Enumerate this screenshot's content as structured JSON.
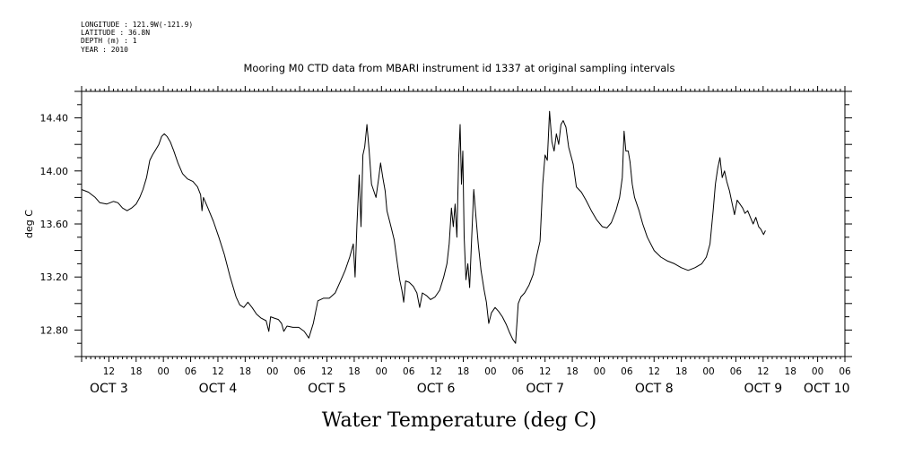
{
  "header": {
    "meta_lines": [
      "LONGITUDE : 121.9W(-121.9)",
      "LATITUDE : 36.8N",
      "DEPTH (m) : 1",
      "YEAR : 2010"
    ]
  },
  "chart_data": {
    "type": "line",
    "title": "Mooring M0 CTD data from MBARI instrument id 1337 at original sampling intervals",
    "xlabel": "Water Temperature (deg C)",
    "ylabel": "deg C",
    "ylim": [
      12.6,
      14.6
    ],
    "y_ticks": [
      12.8,
      13.2,
      13.6,
      14.0,
      14.4
    ],
    "y_tick_labels": [
      "12.80",
      "13.20",
      "13.60",
      "14.00",
      "14.40"
    ],
    "x_unit": "hours since Oct 3 2010 00:00",
    "xlim": [
      6,
      174
    ],
    "hour_ticks": [
      {
        "h": 12,
        "label": "12"
      },
      {
        "h": 18,
        "label": "18"
      },
      {
        "h": 24,
        "label": "00"
      },
      {
        "h": 30,
        "label": "06"
      },
      {
        "h": 36,
        "label": "12"
      },
      {
        "h": 42,
        "label": "18"
      },
      {
        "h": 48,
        "label": "00"
      },
      {
        "h": 54,
        "label": "06"
      },
      {
        "h": 60,
        "label": "12"
      },
      {
        "h": 66,
        "label": "18"
      },
      {
        "h": 72,
        "label": "00"
      },
      {
        "h": 78,
        "label": "06"
      },
      {
        "h": 84,
        "label": "12"
      },
      {
        "h": 90,
        "label": "18"
      },
      {
        "h": 96,
        "label": "00"
      },
      {
        "h": 102,
        "label": "06"
      },
      {
        "h": 108,
        "label": "12"
      },
      {
        "h": 114,
        "label": "18"
      },
      {
        "h": 120,
        "label": "00"
      },
      {
        "h": 126,
        "label": "06"
      },
      {
        "h": 132,
        "label": "12"
      },
      {
        "h": 138,
        "label": "18"
      },
      {
        "h": 144,
        "label": "00"
      },
      {
        "h": 150,
        "label": "06"
      },
      {
        "h": 156,
        "label": "12"
      },
      {
        "h": 162,
        "label": "18"
      },
      {
        "h": 168,
        "label": "00"
      },
      {
        "h": 174,
        "label": "06"
      }
    ],
    "day_labels": [
      {
        "h": 12,
        "label": "OCT  3"
      },
      {
        "h": 36,
        "label": "OCT  4"
      },
      {
        "h": 60,
        "label": "OCT  5"
      },
      {
        "h": 84,
        "label": "OCT  6"
      },
      {
        "h": 108,
        "label": "OCT  7"
      },
      {
        "h": 132,
        "label": "OCT  8"
      },
      {
        "h": 156,
        "label": "OCT  9"
      },
      {
        "h": 170,
        "label": "OCT 10"
      }
    ],
    "grid": false,
    "series": [
      {
        "color": "#000000",
        "points": [
          [
            6.0,
            13.86
          ],
          [
            7.5,
            13.84
          ],
          [
            9.0,
            13.8
          ],
          [
            10.0,
            13.76
          ],
          [
            11.5,
            13.75
          ],
          [
            13.0,
            13.77
          ],
          [
            14.0,
            13.76
          ],
          [
            15.0,
            13.72
          ],
          [
            16.0,
            13.7
          ],
          [
            17.0,
            13.72
          ],
          [
            18.0,
            13.75
          ],
          [
            18.8,
            13.8
          ],
          [
            19.5,
            13.86
          ],
          [
            20.3,
            13.95
          ],
          [
            21.0,
            14.08
          ],
          [
            21.6,
            14.12
          ],
          [
            22.3,
            14.16
          ],
          [
            23.0,
            14.2
          ],
          [
            23.6,
            14.26
          ],
          [
            24.2,
            14.28
          ],
          [
            24.8,
            14.26
          ],
          [
            25.5,
            14.22
          ],
          [
            26.3,
            14.15
          ],
          [
            27.2,
            14.06
          ],
          [
            28.2,
            13.98
          ],
          [
            29.3,
            13.94
          ],
          [
            30.5,
            13.92
          ],
          [
            31.5,
            13.88
          ],
          [
            32.2,
            13.82
          ],
          [
            32.5,
            13.7
          ],
          [
            32.8,
            13.8
          ],
          [
            33.8,
            13.72
          ],
          [
            35.0,
            13.62
          ],
          [
            36.2,
            13.5
          ],
          [
            37.4,
            13.37
          ],
          [
            38.7,
            13.2
          ],
          [
            40.0,
            13.05
          ],
          [
            40.8,
            12.99
          ],
          [
            41.7,
            12.97
          ],
          [
            42.6,
            13.01
          ],
          [
            43.5,
            12.97
          ],
          [
            44.5,
            12.92
          ],
          [
            45.5,
            12.89
          ],
          [
            46.6,
            12.87
          ],
          [
            47.2,
            12.79
          ],
          [
            47.6,
            12.9
          ],
          [
            48.4,
            12.89
          ],
          [
            49.3,
            12.88
          ],
          [
            50.0,
            12.85
          ],
          [
            50.5,
            12.79
          ],
          [
            51.2,
            12.83
          ],
          [
            52.5,
            12.82
          ],
          [
            53.8,
            12.82
          ],
          [
            55.0,
            12.79
          ],
          [
            56.0,
            12.74
          ],
          [
            57.0,
            12.85
          ],
          [
            58.0,
            13.02
          ],
          [
            59.2,
            13.04
          ],
          [
            60.5,
            13.04
          ],
          [
            61.8,
            13.08
          ],
          [
            63.0,
            13.17
          ],
          [
            64.0,
            13.25
          ],
          [
            65.0,
            13.35
          ],
          [
            65.8,
            13.45
          ],
          [
            66.2,
            13.2
          ],
          [
            66.6,
            13.6
          ],
          [
            67.1,
            13.97
          ],
          [
            67.5,
            13.58
          ],
          [
            67.9,
            14.12
          ],
          [
            68.3,
            14.18
          ],
          [
            68.8,
            14.35
          ],
          [
            69.3,
            14.15
          ],
          [
            69.8,
            13.9
          ],
          [
            70.3,
            13.85
          ],
          [
            70.8,
            13.8
          ],
          [
            71.4,
            13.95
          ],
          [
            71.8,
            14.06
          ],
          [
            72.3,
            13.95
          ],
          [
            72.8,
            13.85
          ],
          [
            73.2,
            13.7
          ],
          [
            73.8,
            13.62
          ],
          [
            74.3,
            13.55
          ],
          [
            74.8,
            13.48
          ],
          [
            75.5,
            13.3
          ],
          [
            76.0,
            13.18
          ],
          [
            76.5,
            13.1
          ],
          [
            76.9,
            13.01
          ],
          [
            77.3,
            13.17
          ],
          [
            78.1,
            13.16
          ],
          [
            79.0,
            13.13
          ],
          [
            79.8,
            13.08
          ],
          [
            80.4,
            12.97
          ],
          [
            81.0,
            13.08
          ],
          [
            81.9,
            13.06
          ],
          [
            82.8,
            13.03
          ],
          [
            83.8,
            13.05
          ],
          [
            84.8,
            13.1
          ],
          [
            85.7,
            13.2
          ],
          [
            86.4,
            13.3
          ],
          [
            86.9,
            13.45
          ],
          [
            87.4,
            13.72
          ],
          [
            87.8,
            13.58
          ],
          [
            88.2,
            13.75
          ],
          [
            88.6,
            13.5
          ],
          [
            89.0,
            14.1
          ],
          [
            89.3,
            14.35
          ],
          [
            89.6,
            13.9
          ],
          [
            89.9,
            14.15
          ],
          [
            90.2,
            13.5
          ],
          [
            90.6,
            13.18
          ],
          [
            91.0,
            13.3
          ],
          [
            91.4,
            13.12
          ],
          [
            91.8,
            13.45
          ],
          [
            92.3,
            13.86
          ],
          [
            92.8,
            13.65
          ],
          [
            93.3,
            13.45
          ],
          [
            93.9,
            13.25
          ],
          [
            94.6,
            13.1
          ],
          [
            95.1,
            13.01
          ],
          [
            95.6,
            12.85
          ],
          [
            96.2,
            12.93
          ],
          [
            97.0,
            12.97
          ],
          [
            97.8,
            12.94
          ],
          [
            98.6,
            12.9
          ],
          [
            99.5,
            12.84
          ],
          [
            100.2,
            12.78
          ],
          [
            100.9,
            12.73
          ],
          [
            101.5,
            12.7
          ],
          [
            102.1,
            13.0
          ],
          [
            102.7,
            13.05
          ],
          [
            103.5,
            13.08
          ],
          [
            104.5,
            13.14
          ],
          [
            105.4,
            13.22
          ],
          [
            106.1,
            13.35
          ],
          [
            106.9,
            13.47
          ],
          [
            107.5,
            13.9
          ],
          [
            108.0,
            14.12
          ],
          [
            108.5,
            14.08
          ],
          [
            109.0,
            14.45
          ],
          [
            109.5,
            14.22
          ],
          [
            110.0,
            14.15
          ],
          [
            110.5,
            14.28
          ],
          [
            111.0,
            14.2
          ],
          [
            111.5,
            14.35
          ],
          [
            112.0,
            14.38
          ],
          [
            112.6,
            14.33
          ],
          [
            113.2,
            14.18
          ],
          [
            114.2,
            14.05
          ],
          [
            114.9,
            13.88
          ],
          [
            116.0,
            13.84
          ],
          [
            117.0,
            13.78
          ],
          [
            118.2,
            13.7
          ],
          [
            119.4,
            13.63
          ],
          [
            120.6,
            13.58
          ],
          [
            121.6,
            13.57
          ],
          [
            122.6,
            13.61
          ],
          [
            123.6,
            13.7
          ],
          [
            124.4,
            13.8
          ],
          [
            125.0,
            13.95
          ],
          [
            125.4,
            14.3
          ],
          [
            125.8,
            14.15
          ],
          [
            126.3,
            14.15
          ],
          [
            126.7,
            14.07
          ],
          [
            127.2,
            13.9
          ],
          [
            127.7,
            13.8
          ],
          [
            128.2,
            13.75
          ],
          [
            128.7,
            13.7
          ],
          [
            129.5,
            13.6
          ],
          [
            130.5,
            13.5
          ],
          [
            132.0,
            13.4
          ],
          [
            133.5,
            13.35
          ],
          [
            135.0,
            13.32
          ],
          [
            136.5,
            13.3
          ],
          [
            138.0,
            13.27
          ],
          [
            139.5,
            13.25
          ],
          [
            141.0,
            13.27
          ],
          [
            142.5,
            13.3
          ],
          [
            143.5,
            13.35
          ],
          [
            144.3,
            13.45
          ],
          [
            145.0,
            13.7
          ],
          [
            145.5,
            13.9
          ],
          [
            146.0,
            14.02
          ],
          [
            146.5,
            14.1
          ],
          [
            147.0,
            13.95
          ],
          [
            147.5,
            14.0
          ],
          [
            148.0,
            13.92
          ],
          [
            148.6,
            13.85
          ],
          [
            149.2,
            13.75
          ],
          [
            149.7,
            13.67
          ],
          [
            150.3,
            13.78
          ],
          [
            150.9,
            13.75
          ],
          [
            151.5,
            13.72
          ],
          [
            152.0,
            13.68
          ],
          [
            152.6,
            13.7
          ],
          [
            153.2,
            13.65
          ],
          [
            153.8,
            13.6
          ],
          [
            154.4,
            13.65
          ],
          [
            155.0,
            13.58
          ],
          [
            155.5,
            13.56
          ],
          [
            156.1,
            13.52
          ],
          [
            156.5,
            13.55
          ]
        ]
      }
    ]
  }
}
